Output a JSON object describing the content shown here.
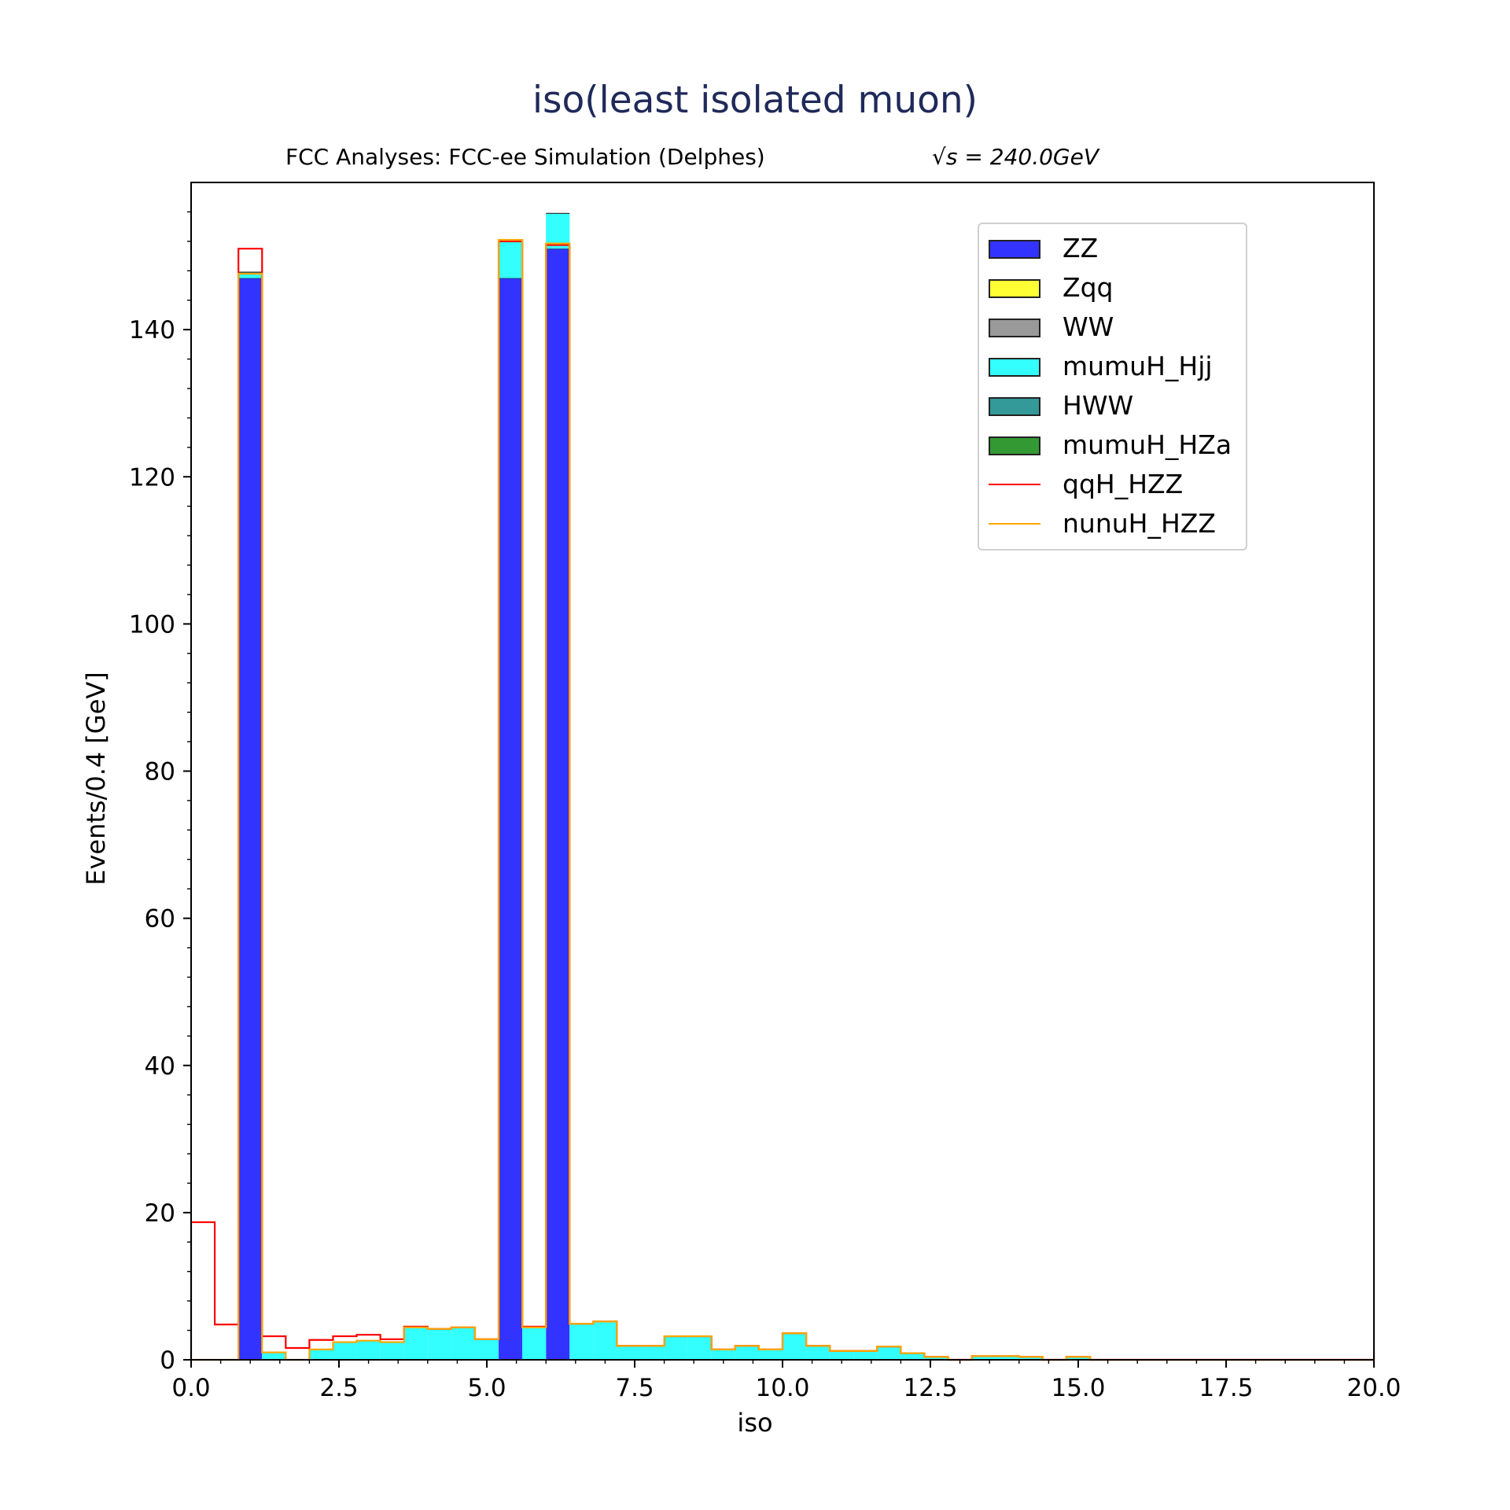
{
  "title": "iso(least isolated muon)",
  "subtitle": "FCC Analyses: FCC-ee Simulation (Delphes)",
  "energy_label": {
    "prefix": "√s",
    "value": "= 240.0GeV"
  },
  "chart_data": {
    "type": "bar",
    "stacked": true,
    "histogram": true,
    "title": "iso(least isolated muon)",
    "xlabel": "iso",
    "ylabel": "Events/0.4 [GeV]",
    "xlim": [
      0,
      20
    ],
    "ylim": [
      0,
      160
    ],
    "bin_edges_start": 0,
    "bin_width": 0.4,
    "x_ticks": [
      "0.0",
      "2.5",
      "5.0",
      "7.5",
      "10.0",
      "12.5",
      "15.0",
      "17.5",
      "20.0"
    ],
    "y_ticks": [
      "0",
      "20",
      "40",
      "60",
      "80",
      "100",
      "120",
      "140"
    ],
    "legend_position": "upper-right",
    "series": [
      {
        "name": "ZZ",
        "color": "#3333ff",
        "kind": "fill",
        "values": [
          0,
          0,
          147,
          0,
          0,
          0,
          0,
          0,
          0,
          0,
          0,
          0,
          0,
          147,
          0,
          151,
          0,
          0,
          0,
          0,
          0,
          0,
          0,
          0,
          0,
          0,
          0,
          0,
          0,
          0,
          0,
          0,
          0,
          0,
          0,
          0,
          0,
          0,
          0,
          0,
          0,
          0,
          0,
          0,
          0,
          0,
          0,
          0,
          0,
          0
        ]
      },
      {
        "name": "Zqq",
        "color": "#ffff33",
        "kind": "fill",
        "values": [
          0,
          0,
          0,
          0,
          0,
          0,
          0,
          0,
          0,
          0,
          0,
          0,
          0,
          0,
          0,
          0,
          0,
          0,
          0,
          0,
          0,
          0,
          0,
          0,
          0,
          0,
          0,
          0,
          0,
          0,
          0,
          0,
          0,
          0,
          0,
          0,
          0,
          0,
          0,
          0,
          0,
          0,
          0,
          0,
          0,
          0,
          0,
          0,
          0,
          0
        ]
      },
      {
        "name": "WW",
        "color": "#999999",
        "kind": "fill",
        "values": [
          0,
          0,
          0,
          0,
          0,
          0,
          0,
          0,
          0,
          0,
          0,
          0,
          0,
          0,
          0,
          0,
          0,
          0,
          0,
          0,
          0,
          0,
          0,
          0,
          0,
          0,
          0,
          0,
          0,
          0,
          0,
          0,
          0,
          0,
          0,
          0,
          0,
          0,
          0,
          0,
          0,
          0,
          0,
          0,
          0,
          0,
          0,
          0,
          0,
          0
        ]
      },
      {
        "name": "mumuH_Hjj",
        "color": "#33ffff",
        "kind": "fill",
        "values": [
          0,
          0,
          0.8,
          1.0,
          0,
          1.4,
          2.4,
          2.6,
          2.4,
          4.4,
          4.2,
          4.4,
          2.8,
          5.2,
          4.4,
          4.8,
          4.9,
          5.2,
          1.9,
          1.9,
          3.2,
          3.2,
          1.4,
          1.9,
          1.4,
          3.6,
          1.9,
          1.2,
          1.2,
          1.8,
          0.9,
          0.4,
          0,
          0.5,
          0.5,
          0.4,
          0,
          0.4,
          0,
          0,
          0,
          0,
          0,
          0,
          0,
          0,
          0,
          0,
          0,
          0
        ]
      },
      {
        "name": "HWW",
        "color": "#339999",
        "kind": "fill",
        "values": [
          0,
          0,
          0,
          0,
          0,
          0,
          0,
          0,
          0,
          0,
          0,
          0,
          0,
          0,
          0,
          0,
          0,
          0,
          0,
          0,
          0,
          0,
          0,
          0,
          0,
          0,
          0,
          0,
          0,
          0,
          0,
          0,
          0,
          0,
          0,
          0,
          0,
          0,
          0,
          0,
          0,
          0,
          0,
          0,
          0,
          0,
          0,
          0,
          0,
          0
        ]
      },
      {
        "name": "mumuH_HZa",
        "color": "#339933",
        "kind": "fill",
        "values": [
          0,
          0,
          0,
          0,
          0,
          0,
          0,
          0,
          0,
          0,
          0,
          0,
          0,
          0,
          0,
          0,
          0,
          0,
          0,
          0,
          0,
          0,
          0,
          0,
          0,
          0,
          0,
          0,
          0,
          0,
          0,
          0,
          0,
          0,
          0,
          0,
          0,
          0,
          0,
          0,
          0,
          0,
          0,
          0,
          0,
          0,
          0,
          0,
          0,
          0
        ]
      },
      {
        "name": "qqH_HZZ",
        "color": "#ff0000",
        "kind": "step",
        "values": [
          18.7,
          4.8,
          151,
          3.2,
          1.6,
          2.7,
          3.2,
          3.4,
          2.8,
          4.5,
          4.2,
          4.4,
          2.8,
          152,
          4.5,
          151.5,
          4.9,
          5.2,
          1.9,
          1.9,
          3.2,
          3.2,
          1.4,
          1.9,
          1.4,
          3.6,
          1.9,
          1.2,
          1.2,
          1.8,
          0.9,
          0.4,
          0,
          0.5,
          0.5,
          0.4,
          0,
          0.4,
          0,
          0,
          0,
          0,
          0,
          0,
          0,
          0,
          0,
          0,
          0,
          0
        ]
      },
      {
        "name": "nunuH_HZZ",
        "color": "#ffa500",
        "kind": "step",
        "values": [
          0,
          0,
          147.6,
          1.0,
          0,
          1.4,
          2.4,
          2.6,
          2.4,
          4.4,
          4.2,
          4.4,
          2.8,
          152.2,
          4.4,
          151.7,
          4.9,
          5.2,
          1.9,
          1.9,
          3.2,
          3.2,
          1.4,
          1.9,
          1.4,
          3.6,
          1.9,
          1.2,
          1.2,
          1.8,
          0.9,
          0.4,
          0,
          0.5,
          0.5,
          0.4,
          0,
          0.4,
          0,
          0,
          0,
          0,
          0,
          0,
          0,
          0,
          0,
          0,
          0,
          0
        ]
      }
    ]
  }
}
